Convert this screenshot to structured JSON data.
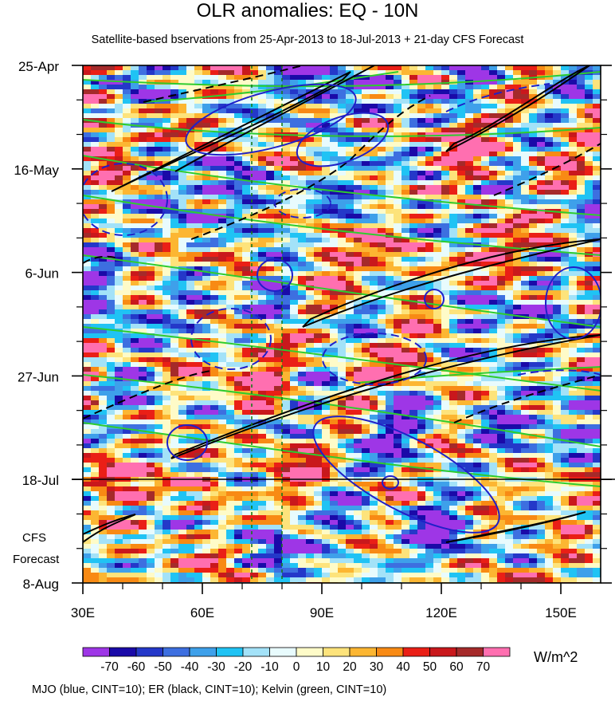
{
  "title": "OLR anomalies: EQ - 10N",
  "subtitle": "Satellite-based bservations from 25-Apr-2013 to 18-Jul-2013 + 21-day CFS Forecast",
  "footer": "MJO (blue, CINT=10); ER (black, CINT=10); Kelvin (green, CINT=10)",
  "forecast_label": [
    "CFS",
    "Forecast"
  ],
  "colorbar": {
    "units": "W/m^2",
    "labels": [
      "-70",
      "-60",
      "-50",
      "-40",
      "-30",
      "-20",
      "-10",
      "0",
      "10",
      "20",
      "30",
      "40",
      "50",
      "60",
      "70"
    ],
    "colors": [
      "#9e36e6",
      "#1a0aa8",
      "#2438c9",
      "#3d6fe0",
      "#3ea0ea",
      "#20c3f4",
      "#a3e2f8",
      "#e8fbfd",
      "#fefbc8",
      "#fde37b",
      "#fcb632",
      "#f88a14",
      "#ea1f16",
      "#c9181c",
      "#a52a2a",
      "#ff6fb0"
    ]
  },
  "chart_data": {
    "type": "heatmap",
    "title": "OLR anomalies: EQ - 10N",
    "x_axis": {
      "range": [
        "30E",
        "160E"
      ],
      "ticks": [
        "30E",
        "60E",
        "90E",
        "120E",
        "150E"
      ]
    },
    "y_axis": {
      "direction": "time-down",
      "ticks": [
        "25-Apr",
        "16-May",
        "6-Jun",
        "27-Jun",
        "18-Jul",
        "8-Aug"
      ]
    },
    "observation_end": "18-Jul",
    "reference_lines": [
      "72E",
      "80E"
    ],
    "contours": [
      {
        "name": "MJO",
        "color": "blue"
      },
      {
        "name": "ER",
        "color": "black"
      },
      {
        "name": "Kelvin",
        "color": "green"
      }
    ]
  }
}
